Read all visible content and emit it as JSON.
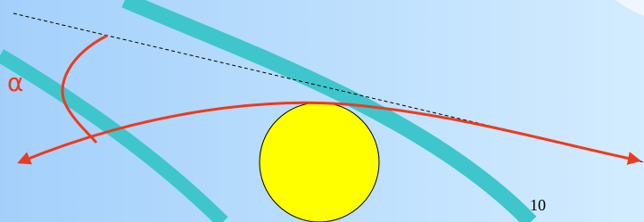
{
  "labels": {
    "angle": "α",
    "page_number": "10"
  }
}
